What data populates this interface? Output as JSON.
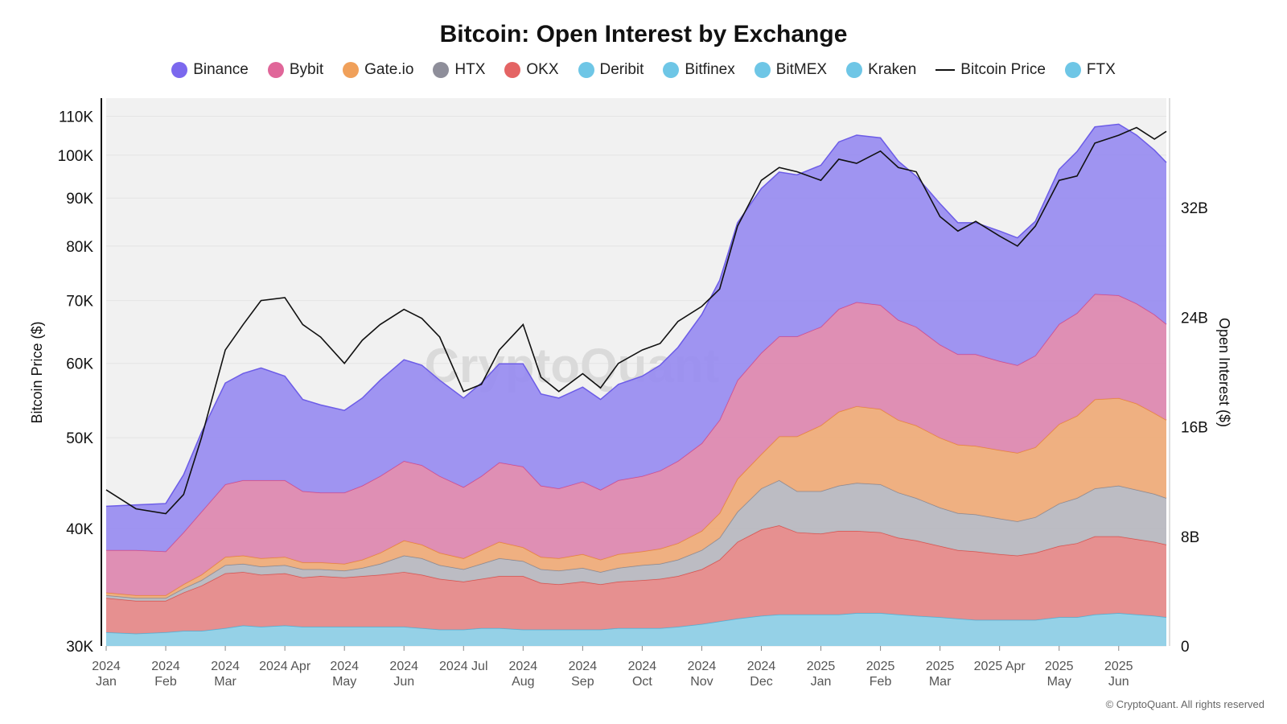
{
  "chart_data": {
    "type": "area",
    "title": "Bitcoin: Open Interest by Exchange",
    "ylabel_left": "Bitcoin Price ($)",
    "ylabel_right": "Open Interest ($)",
    "y_left_scale": "log",
    "y_left_range": [
      30000,
      115000
    ],
    "y_left_ticks": [
      "30K",
      "40K",
      "50K",
      "60K",
      "70K",
      "80K",
      "90K",
      "100K",
      "110K"
    ],
    "y_left_tick_values": [
      30000,
      40000,
      50000,
      60000,
      70000,
      80000,
      90000,
      100000,
      110000
    ],
    "y_right_range": [
      0,
      40000000000
    ],
    "y_right_ticks": [
      "0",
      "8B",
      "16B",
      "24B",
      "32B"
    ],
    "y_right_tick_values": [
      0,
      8000000000,
      16000000000,
      24000000000,
      32000000000
    ],
    "x_tick_labels": [
      [
        "2024",
        "Jan"
      ],
      [
        "2024",
        "Feb"
      ],
      [
        "2024",
        "Mar"
      ],
      [
        "2024 Apr",
        ""
      ],
      [
        "2024",
        "May"
      ],
      [
        "2024",
        "Jun"
      ],
      [
        "2024 Jul",
        ""
      ],
      [
        "2024",
        "Aug"
      ],
      [
        "2024",
        "Sep"
      ],
      [
        "2024",
        "Oct"
      ],
      [
        "2024",
        "Nov"
      ],
      [
        "2024",
        "Dec"
      ],
      [
        "2025",
        "Jan"
      ],
      [
        "2025",
        "Feb"
      ],
      [
        "2025",
        "Mar"
      ],
      [
        "2025 Apr",
        ""
      ],
      [
        "2025",
        "May"
      ],
      [
        "2025",
        "Jun"
      ]
    ],
    "x_ticks_monthidx": [
      0,
      1,
      2,
      3,
      4,
      5,
      6,
      7,
      8,
      9,
      10,
      11,
      12,
      13,
      14,
      15,
      16,
      17
    ],
    "x_range_monthidx": [
      0,
      17.8
    ],
    "legend": [
      {
        "name": "Binance",
        "color": "#7B68EE",
        "kind": "dot"
      },
      {
        "name": "Bybit",
        "color": "#E06699",
        "kind": "dot"
      },
      {
        "name": "Gate.io",
        "color": "#F0A05A",
        "kind": "dot"
      },
      {
        "name": "HTX",
        "color": "#8E8E9A",
        "kind": "dot"
      },
      {
        "name": "OKX",
        "color": "#E46464",
        "kind": "dot"
      },
      {
        "name": "Deribit",
        "color": "#6EC6E6",
        "kind": "dot"
      },
      {
        "name": "Bitfinex",
        "color": "#6EC6E6",
        "kind": "dot"
      },
      {
        "name": "BitMEX",
        "color": "#6EC6E6",
        "kind": "dot"
      },
      {
        "name": "Kraken",
        "color": "#6EC6E6",
        "kind": "dot"
      },
      {
        "name": "Bitcoin Price",
        "color": "#111111",
        "kind": "line"
      },
      {
        "name": "FTX",
        "color": "#6EC6E6",
        "kind": "dot"
      }
    ],
    "x_monthidx": [
      0,
      0.5,
      1,
      1.3,
      1.6,
      2,
      2.3,
      2.6,
      3,
      3.3,
      3.6,
      4,
      4.3,
      4.6,
      5,
      5.3,
      5.6,
      6,
      6.3,
      6.6,
      7,
      7.3,
      7.6,
      8,
      8.3,
      8.6,
      9,
      9.3,
      9.6,
      10,
      10.3,
      10.6,
      11,
      11.3,
      11.6,
      12,
      12.3,
      12.6,
      13,
      13.3,
      13.6,
      14,
      14.3,
      14.6,
      15,
      15.3,
      15.6,
      16,
      16.3,
      16.6,
      17,
      17.3,
      17.6,
      17.8
    ],
    "btc_price": [
      44000,
      42000,
      41500,
      43500,
      50000,
      62000,
      66000,
      70000,
      70500,
      66000,
      64000,
      60000,
      63500,
      66000,
      68500,
      67000,
      64000,
      56000,
      57000,
      62000,
      66000,
      58000,
      56000,
      58500,
      56500,
      60000,
      62000,
      63000,
      66500,
      69000,
      72000,
      84000,
      94000,
      97000,
      96000,
      94000,
      99000,
      98000,
      101000,
      97000,
      96000,
      86000,
      83000,
      85000,
      82000,
      80000,
      84000,
      94000,
      95000,
      103000,
      105000,
      107000,
      104000,
      106000
    ],
    "open_interest_billions": {
      "Other (Deribit, Bitfinex, BitMEX, Kraken, FTX)": [
        1.0,
        0.9,
        1.0,
        1.1,
        1.1,
        1.3,
        1.5,
        1.4,
        1.5,
        1.4,
        1.4,
        1.4,
        1.4,
        1.4,
        1.4,
        1.3,
        1.2,
        1.2,
        1.3,
        1.3,
        1.2,
        1.2,
        1.2,
        1.2,
        1.2,
        1.3,
        1.3,
        1.3,
        1.4,
        1.6,
        1.8,
        2.0,
        2.2,
        2.3,
        2.3,
        2.3,
        2.3,
        2.4,
        2.4,
        2.3,
        2.2,
        2.1,
        2.0,
        1.9,
        1.9,
        1.9,
        1.9,
        2.1,
        2.1,
        2.3,
        2.4,
        2.3,
        2.2,
        2.1
      ],
      "OKX": [
        2.5,
        2.4,
        2.3,
        2.8,
        3.3,
        4.0,
        3.9,
        3.8,
        3.8,
        3.6,
        3.7,
        3.6,
        3.7,
        3.8,
        4.0,
        3.9,
        3.7,
        3.5,
        3.6,
        3.8,
        3.9,
        3.4,
        3.3,
        3.5,
        3.3,
        3.4,
        3.5,
        3.6,
        3.7,
        4.0,
        4.5,
        5.6,
        6.3,
        6.5,
        6.0,
        5.9,
        6.1,
        6.0,
        5.9,
        5.6,
        5.5,
        5.2,
        5.0,
        5.0,
        4.8,
        4.7,
        4.9,
        5.2,
        5.4,
        5.7,
        5.6,
        5.5,
        5.4,
        5.3
      ],
      "HTX": [
        0.2,
        0.2,
        0.2,
        0.3,
        0.4,
        0.6,
        0.6,
        0.6,
        0.6,
        0.6,
        0.5,
        0.5,
        0.6,
        0.8,
        1.2,
        1.2,
        1.0,
        0.9,
        1.1,
        1.3,
        1.1,
        1.0,
        1.0,
        1.0,
        0.9,
        1.0,
        1.1,
        1.1,
        1.2,
        1.4,
        1.6,
        2.2,
        3.0,
        3.3,
        3.0,
        3.1,
        3.3,
        3.5,
        3.5,
        3.3,
        3.1,
        2.8,
        2.7,
        2.7,
        2.6,
        2.5,
        2.6,
        3.1,
        3.3,
        3.5,
        3.7,
        3.6,
        3.5,
        3.4
      ],
      "Gate.io": [
        0.2,
        0.2,
        0.2,
        0.3,
        0.4,
        0.6,
        0.6,
        0.6,
        0.6,
        0.5,
        0.5,
        0.5,
        0.6,
        0.8,
        1.1,
        1.0,
        0.9,
        0.8,
        1.0,
        1.2,
        1.0,
        0.9,
        0.9,
        1.0,
        0.9,
        1.0,
        1.0,
        1.1,
        1.2,
        1.4,
        1.8,
        2.4,
        2.5,
        3.2,
        4.0,
        4.8,
        5.4,
        5.6,
        5.5,
        5.3,
        5.3,
        5.1,
        5.0,
        5.0,
        5.0,
        5.0,
        5.1,
        5.8,
        6.0,
        6.5,
        6.4,
        6.3,
        5.9,
        5.7
      ],
      "Bybit": [
        3.1,
        3.3,
        3.2,
        3.8,
        4.6,
        5.3,
        5.5,
        5.7,
        5.6,
        5.2,
        5.1,
        5.2,
        5.4,
        5.6,
        5.8,
        5.8,
        5.6,
        5.2,
        5.4,
        5.8,
        5.9,
        5.2,
        5.1,
        5.3,
        5.1,
        5.4,
        5.5,
        5.7,
        6.0,
        6.4,
        6.8,
        7.2,
        7.4,
        7.3,
        7.3,
        7.2,
        7.5,
        7.6,
        7.6,
        7.3,
        7.2,
        6.8,
        6.6,
        6.7,
        6.5,
        6.4,
        6.7,
        7.3,
        7.5,
        7.7,
        7.5,
        7.3,
        7.2,
        7.0
      ],
      "Binance": [
        3.2,
        3.3,
        3.5,
        4.2,
        5.8,
        7.4,
        7.8,
        8.2,
        7.6,
        6.7,
        6.4,
        6.0,
        6.4,
        7.0,
        7.4,
        7.3,
        7.0,
        6.5,
        6.8,
        7.2,
        7.5,
        6.7,
        6.6,
        6.9,
        6.6,
        7.0,
        7.3,
        7.7,
        8.3,
        9.4,
        10.2,
        11.5,
        12.0,
        12.0,
        11.8,
        11.8,
        12.2,
        12.2,
        12.2,
        11.6,
        11.0,
        10.3,
        9.6,
        9.6,
        9.5,
        9.3,
        9.8,
        11.3,
        11.8,
        12.2,
        12.5,
        12.3,
        12.0,
        11.8
      ]
    }
  },
  "copyright": "© CryptoQuant. All rights reserved",
  "watermark": "CryptoQuant"
}
